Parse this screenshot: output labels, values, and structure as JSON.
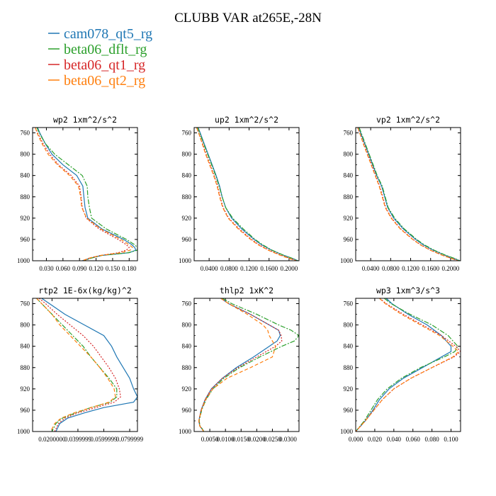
{
  "figure_title": "CLUBB VAR at265E,-28N",
  "colors": {
    "cam078_qt5_rg": "#1f77b4",
    "beta06_dflt_rg": "#2ca02c",
    "beta06_qt1_rg": "#d62728",
    "beta06_qt2_rg": "#ff7f0e"
  },
  "legend": [
    {
      "name": "cam078_qt5_rg",
      "color": "#1f77b4",
      "dash": "solid"
    },
    {
      "name": "beta06_dflt_rg",
      "color": "#2ca02c",
      "dash": "dashdot"
    },
    {
      "name": "beta06_qt1_rg",
      "color": "#d62728",
      "dash": "dotted"
    },
    {
      "name": "beta06_qt2_rg",
      "color": "#ff7f0e",
      "dash": "dashed"
    }
  ],
  "chart_data": [
    {
      "type": "line",
      "title": "wp2  1xm^2/s^2",
      "xlim": [
        0.005,
        0.195
      ],
      "ylim": [
        1000,
        750
      ],
      "xticks": [
        "0.030",
        "0.060",
        "0.090",
        "0.120",
        "0.150",
        "0.180"
      ],
      "xtick_values": [
        0.03,
        0.06,
        0.09,
        0.12,
        0.15,
        0.18
      ],
      "yticks": [
        760,
        800,
        840,
        880,
        920,
        960,
        1000
      ],
      "y": [
        750,
        760,
        780,
        800,
        820,
        840,
        860,
        880,
        900,
        920,
        940,
        960,
        970,
        975,
        980,
        985,
        990,
        995,
        1000
      ],
      "series": [
        {
          "name": "cam078_qt5_rg",
          "values": [
            0.014,
            0.018,
            0.028,
            0.04,
            0.06,
            0.085,
            0.096,
            0.098,
            0.1,
            0.105,
            0.13,
            0.17,
            0.185,
            0.19,
            0.192,
            0.18,
            0.13,
            0.11,
            0.095
          ]
        },
        {
          "name": "beta06_dflt_rg",
          "values": [
            0.013,
            0.017,
            0.028,
            0.045,
            0.07,
            0.095,
            0.104,
            0.105,
            0.108,
            0.112,
            0.138,
            0.175,
            0.19,
            0.195,
            0.195,
            0.178,
            0.13,
            0.112,
            0.098
          ]
        },
        {
          "name": "beta06_qt1_rg",
          "values": [
            0.01,
            0.014,
            0.024,
            0.036,
            0.052,
            0.075,
            0.09,
            0.093,
            0.095,
            0.102,
            0.125,
            0.16,
            0.175,
            0.18,
            0.175,
            0.16,
            0.128,
            0.108,
            0.098
          ]
        },
        {
          "name": "beta06_qt2_rg",
          "values": [
            0.01,
            0.013,
            0.022,
            0.033,
            0.05,
            0.072,
            0.088,
            0.092,
            0.094,
            0.103,
            0.128,
            0.165,
            0.18,
            0.186,
            0.182,
            0.165,
            0.128,
            0.108,
            0.095
          ]
        }
      ]
    },
    {
      "type": "line",
      "title": "up2  1xm^2/s^2",
      "xlim": [
        0.01,
        0.22
      ],
      "ylim": [
        1000,
        750
      ],
      "xticks": [
        "0.0400",
        "0.0800",
        "0.1200",
        "0.1600",
        "0.2000"
      ],
      "xtick_values": [
        0.04,
        0.08,
        0.12,
        0.16,
        0.2
      ],
      "yticks": [
        760,
        800,
        840,
        880,
        920,
        960,
        1000
      ],
      "y": [
        750,
        760,
        780,
        800,
        820,
        840,
        860,
        880,
        900,
        920,
        940,
        960,
        970,
        980,
        990,
        995,
        1000
      ],
      "series": [
        {
          "name": "cam078_qt5_rg",
          "values": [
            0.018,
            0.022,
            0.03,
            0.038,
            0.046,
            0.054,
            0.061,
            0.066,
            0.073,
            0.085,
            0.105,
            0.13,
            0.145,
            0.165,
            0.19,
            0.205,
            0.218
          ]
        },
        {
          "name": "beta06_dflt_rg",
          "values": [
            0.017,
            0.021,
            0.029,
            0.037,
            0.045,
            0.053,
            0.06,
            0.066,
            0.073,
            0.087,
            0.108,
            0.132,
            0.147,
            0.166,
            0.19,
            0.205,
            0.218
          ]
        },
        {
          "name": "beta06_qt1_rg",
          "values": [
            0.015,
            0.019,
            0.027,
            0.034,
            0.042,
            0.05,
            0.057,
            0.062,
            0.068,
            0.079,
            0.1,
            0.125,
            0.14,
            0.16,
            0.185,
            0.2,
            0.215
          ]
        },
        {
          "name": "beta06_qt2_rg",
          "values": [
            0.015,
            0.019,
            0.026,
            0.033,
            0.041,
            0.049,
            0.056,
            0.061,
            0.067,
            0.078,
            0.098,
            0.123,
            0.138,
            0.158,
            0.183,
            0.198,
            0.213
          ]
        }
      ]
    },
    {
      "type": "line",
      "title": "vp2  1xm^2/s^2",
      "xlim": [
        0.01,
        0.22
      ],
      "ylim": [
        1000,
        750
      ],
      "xticks": [
        "0.0400",
        "0.0800",
        "0.1200",
        "0.1600",
        "0.2000"
      ],
      "xtick_values": [
        0.04,
        0.08,
        0.12,
        0.16,
        0.2
      ],
      "yticks": [
        760,
        800,
        840,
        880,
        920,
        960,
        1000
      ],
      "y": [
        750,
        760,
        780,
        800,
        820,
        840,
        860,
        880,
        900,
        920,
        940,
        960,
        970,
        980,
        990,
        995,
        1000
      ],
      "series": [
        {
          "name": "cam078_qt5_rg",
          "values": [
            0.016,
            0.02,
            0.028,
            0.036,
            0.044,
            0.052,
            0.062,
            0.068,
            0.074,
            0.086,
            0.105,
            0.13,
            0.145,
            0.165,
            0.19,
            0.205,
            0.218
          ]
        },
        {
          "name": "beta06_dflt_rg",
          "values": [
            0.017,
            0.021,
            0.029,
            0.037,
            0.045,
            0.053,
            0.063,
            0.069,
            0.075,
            0.088,
            0.107,
            0.132,
            0.147,
            0.167,
            0.191,
            0.206,
            0.219
          ]
        },
        {
          "name": "beta06_qt1_rg",
          "values": [
            0.014,
            0.018,
            0.026,
            0.034,
            0.042,
            0.05,
            0.058,
            0.064,
            0.07,
            0.082,
            0.1,
            0.125,
            0.14,
            0.16,
            0.185,
            0.2,
            0.215
          ]
        },
        {
          "name": "beta06_qt2_rg",
          "values": [
            0.014,
            0.018,
            0.025,
            0.033,
            0.041,
            0.049,
            0.057,
            0.063,
            0.069,
            0.081,
            0.099,
            0.124,
            0.139,
            0.159,
            0.184,
            0.199,
            0.214
          ]
        }
      ]
    },
    {
      "type": "line",
      "title": "rtp2  1E-6x(kg/kg)^2",
      "xlim": [
        0.005,
        0.086
      ],
      "ylim": [
        1000,
        750
      ],
      "xticks": [
        "0.0200000",
        "0.0399999",
        "0.0599999",
        "0.0799999"
      ],
      "xtick_values": [
        0.02,
        0.04,
        0.06,
        0.08
      ],
      "yticks": [
        760,
        800,
        840,
        880,
        920,
        960,
        1000
      ],
      "y": [
        750,
        760,
        780,
        800,
        820,
        840,
        860,
        880,
        900,
        920,
        935,
        945,
        955,
        965,
        975,
        985,
        990,
        995,
        1000
      ],
      "series": [
        {
          "name": "cam078_qt5_rg",
          "values": [
            0.012,
            0.018,
            0.03,
            0.045,
            0.06,
            0.066,
            0.07,
            0.075,
            0.08,
            0.083,
            0.086,
            0.083,
            0.06,
            0.045,
            0.032,
            0.026,
            0.025,
            0.024,
            0.023
          ]
        },
        {
          "name": "beta06_dflt_rg",
          "values": [
            0.008,
            0.012,
            0.02,
            0.028,
            0.036,
            0.044,
            0.05,
            0.057,
            0.064,
            0.07,
            0.07,
            0.065,
            0.05,
            0.038,
            0.028,
            0.023,
            0.022,
            0.021,
            0.02
          ]
        },
        {
          "name": "beta06_qt1_rg",
          "values": [
            0.01,
            0.015,
            0.024,
            0.034,
            0.044,
            0.052,
            0.058,
            0.064,
            0.069,
            0.072,
            0.073,
            0.068,
            0.054,
            0.04,
            0.03,
            0.025,
            0.024,
            0.023,
            0.022
          ]
        },
        {
          "name": "beta06_qt2_rg",
          "values": [
            0.008,
            0.012,
            0.02,
            0.026,
            0.034,
            0.042,
            0.05,
            0.057,
            0.063,
            0.068,
            0.069,
            0.064,
            0.05,
            0.037,
            0.027,
            0.022,
            0.021,
            0.02,
            0.019
          ]
        }
      ]
    },
    {
      "type": "line",
      "title": "thlp2  1xK^2",
      "xlim": [
        0.0,
        0.0335
      ],
      "ylim": [
        1000,
        750
      ],
      "xticks": [
        "0.0050",
        "0.0100",
        "0.0150",
        "0.0200",
        "0.0250",
        "0.0300"
      ],
      "xtick_values": [
        0.005,
        0.01,
        0.015,
        0.02,
        0.025,
        0.03
      ],
      "yticks": [
        760,
        800,
        840,
        880,
        920,
        960,
        1000
      ],
      "y": [
        750,
        760,
        780,
        800,
        810,
        820,
        830,
        840,
        860,
        880,
        900,
        920,
        940,
        960,
        980,
        990,
        995,
        1000
      ],
      "series": [
        {
          "name": "cam078_qt5_rg",
          "values": [
            0.0085,
            0.011,
            0.018,
            0.024,
            0.027,
            0.0275,
            0.0265,
            0.024,
            0.019,
            0.0135,
            0.009,
            0.0055,
            0.0035,
            0.0022,
            0.0015,
            0.0018,
            0.0025,
            0.003
          ]
        },
        {
          "name": "beta06_dflt_rg",
          "values": [
            0.009,
            0.012,
            0.02,
            0.027,
            0.031,
            0.0335,
            0.032,
            0.028,
            0.021,
            0.0145,
            0.0095,
            0.006,
            0.0038,
            0.0024,
            0.0016,
            0.0019,
            0.0026,
            0.0031
          ]
        },
        {
          "name": "beta06_qt1_rg",
          "values": [
            0.0085,
            0.011,
            0.018,
            0.024,
            0.027,
            0.0278,
            0.028,
            0.026,
            0.02,
            0.014,
            0.009,
            0.0055,
            0.0035,
            0.0022,
            0.0015,
            0.0018,
            0.0025,
            0.003
          ]
        },
        {
          "name": "beta06_qt2_rg",
          "values": [
            0.0085,
            0.011,
            0.017,
            0.022,
            0.0235,
            0.024,
            0.025,
            0.026,
            0.025,
            0.018,
            0.0105,
            0.006,
            0.0037,
            0.0023,
            0.0015,
            0.0018,
            0.0025,
            0.003
          ]
        }
      ]
    },
    {
      "type": "line",
      "title": "wp3  1xm^3/s^3",
      "xlim": [
        0.0,
        0.11
      ],
      "ylim": [
        1000,
        750
      ],
      "xticks": [
        "0.000",
        "0.020",
        "0.040",
        "0.060",
        "0.080",
        "0.100"
      ],
      "xtick_values": [
        0.0,
        0.02,
        0.04,
        0.06,
        0.08,
        0.1
      ],
      "yticks": [
        760,
        800,
        840,
        880,
        920,
        960,
        1000
      ],
      "y": [
        750,
        760,
        780,
        800,
        820,
        840,
        850,
        860,
        880,
        900,
        920,
        940,
        960,
        980,
        1000
      ],
      "series": [
        {
          "name": "cam078_qt5_rg",
          "values": [
            0.032,
            0.038,
            0.055,
            0.075,
            0.09,
            0.1,
            0.1,
            0.09,
            0.07,
            0.05,
            0.035,
            0.025,
            0.018,
            0.01,
            0.0
          ]
        },
        {
          "name": "beta06_dflt_rg",
          "values": [
            0.03,
            0.037,
            0.057,
            0.08,
            0.097,
            0.107,
            0.104,
            0.093,
            0.068,
            0.048,
            0.033,
            0.023,
            0.016,
            0.009,
            0.0
          ]
        },
        {
          "name": "beta06_qt1_rg",
          "values": [
            0.025,
            0.032,
            0.05,
            0.07,
            0.09,
            0.105,
            0.11,
            0.103,
            0.08,
            0.058,
            0.04,
            0.028,
            0.019,
            0.01,
            0.0
          ]
        },
        {
          "name": "beta06_qt2_rg",
          "values": [
            0.025,
            0.031,
            0.048,
            0.068,
            0.088,
            0.102,
            0.108,
            0.102,
            0.08,
            0.058,
            0.04,
            0.028,
            0.019,
            0.01,
            0.0
          ]
        }
      ]
    }
  ]
}
